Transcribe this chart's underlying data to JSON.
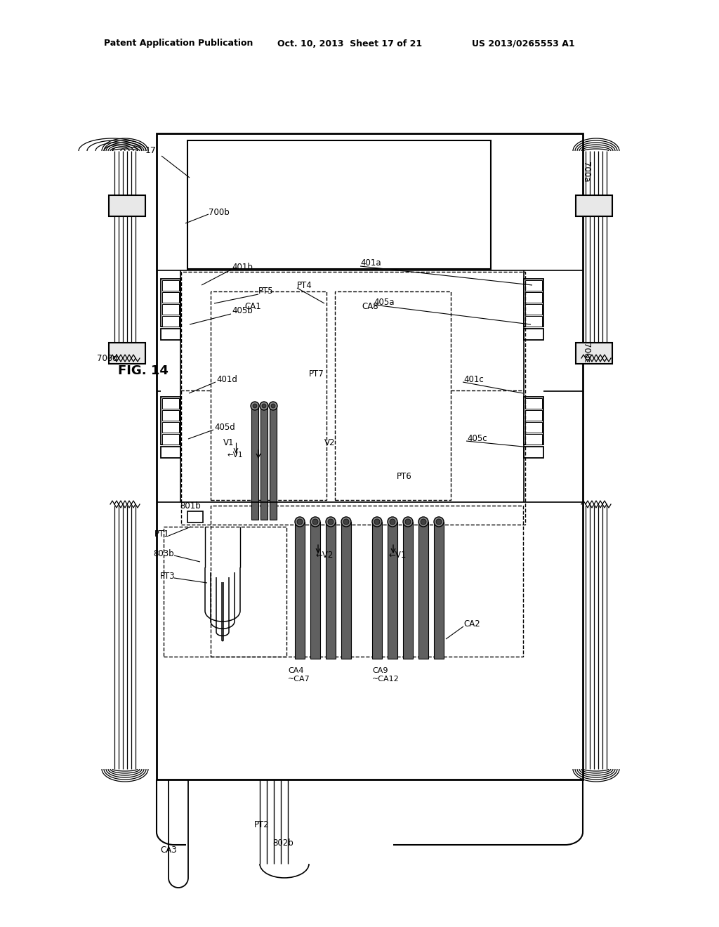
{
  "bg_color": "#ffffff",
  "header_left": "Patent Application Publication",
  "header_mid": "Oct. 10, 2013  Sheet 17 of 21",
  "header_right": "US 2013/0265553 A1",
  "fig_label": "FIG. 14"
}
